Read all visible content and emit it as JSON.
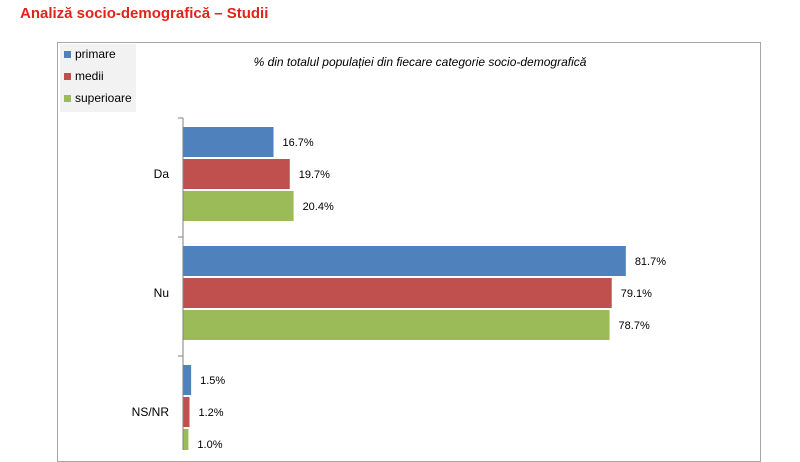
{
  "page": {
    "title": "Analiză socio-demografică – Studii"
  },
  "colors": {
    "title": "#e2231a",
    "primare": "#4f81bd",
    "medii": "#c0504d",
    "superioare": "#9bbb59",
    "axis": "#7f7f7f"
  },
  "chart_data": {
    "type": "bar",
    "orientation": "horizontal",
    "title": "% din totalul populației din fiecare categorie socio-demografică",
    "xlabel": "",
    "ylabel": "",
    "xlim": [
      0,
      100
    ],
    "grid": false,
    "legend_position": "top-left",
    "categories": [
      "Da",
      "Nu",
      "NS/NR"
    ],
    "series": [
      {
        "name": "primare",
        "values": [
          16.7,
          81.7,
          1.5
        ],
        "labels": [
          "16.7%",
          "81.7%",
          "1.5%"
        ]
      },
      {
        "name": "medii",
        "values": [
          19.7,
          79.1,
          1.2
        ],
        "labels": [
          "19.7%",
          "79.1%",
          "1.2%"
        ]
      },
      {
        "name": "superioare",
        "values": [
          20.4,
          78.7,
          1.0
        ],
        "labels": [
          "20.4%",
          "78.7%",
          "1.0%"
        ]
      }
    ]
  }
}
